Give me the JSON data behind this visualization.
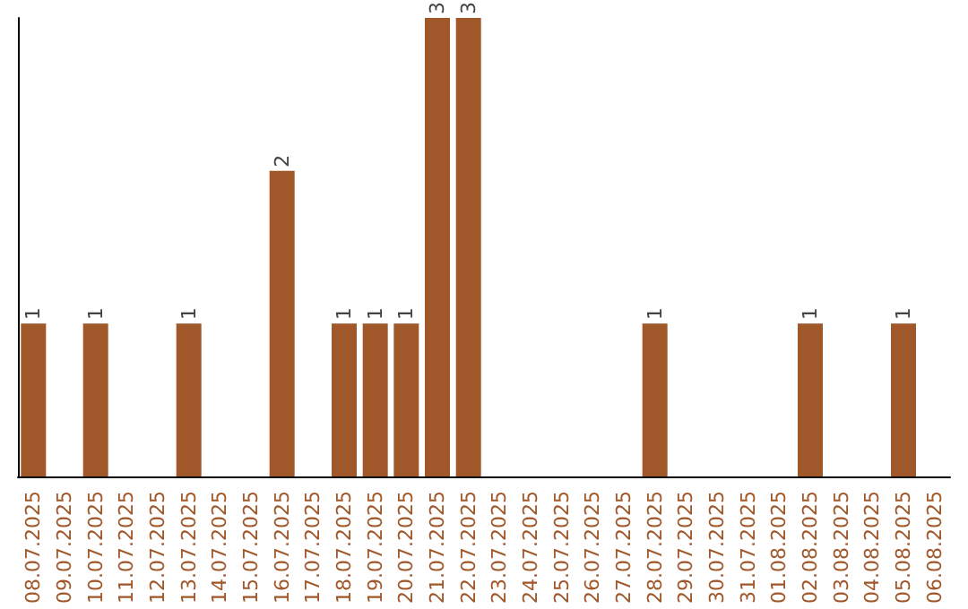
{
  "chart_data": {
    "type": "bar",
    "categories": [
      "08.07.2025",
      "09.07.2025",
      "10.07.2025",
      "11.07.2025",
      "12.07.2025",
      "13.07.2025",
      "14.07.2025",
      "15.07.2025",
      "16.07.2025",
      "17.07.2025",
      "18.07.2025",
      "19.07.2025",
      "20.07.2025",
      "21.07.2025",
      "22.07.2025",
      "23.07.2025",
      "24.07.2025",
      "25.07.2025",
      "26.07.2025",
      "27.07.2025",
      "28.07.2025",
      "29.07.2025",
      "30.07.2025",
      "31.07.2025",
      "01.08.2025",
      "02.08.2025",
      "03.08.2025",
      "04.08.2025",
      "05.08.2025",
      "06.08.2025"
    ],
    "values": [
      1,
      0,
      1,
      0,
      0,
      1,
      0,
      0,
      2,
      0,
      1,
      1,
      1,
      3,
      3,
      0,
      0,
      0,
      0,
      0,
      1,
      0,
      0,
      0,
      0,
      1,
      0,
      0,
      1,
      0
    ],
    "value_labels": [
      "1",
      null,
      "1",
      null,
      null,
      "1",
      null,
      null,
      "2",
      null,
      "1",
      "1",
      "1",
      "3",
      "3",
      null,
      null,
      null,
      null,
      null,
      "1",
      null,
      null,
      null,
      null,
      "1",
      null,
      null,
      "1",
      null
    ],
    "color": "#a0572a",
    "grid": false,
    "tick_labels": "x"
  }
}
